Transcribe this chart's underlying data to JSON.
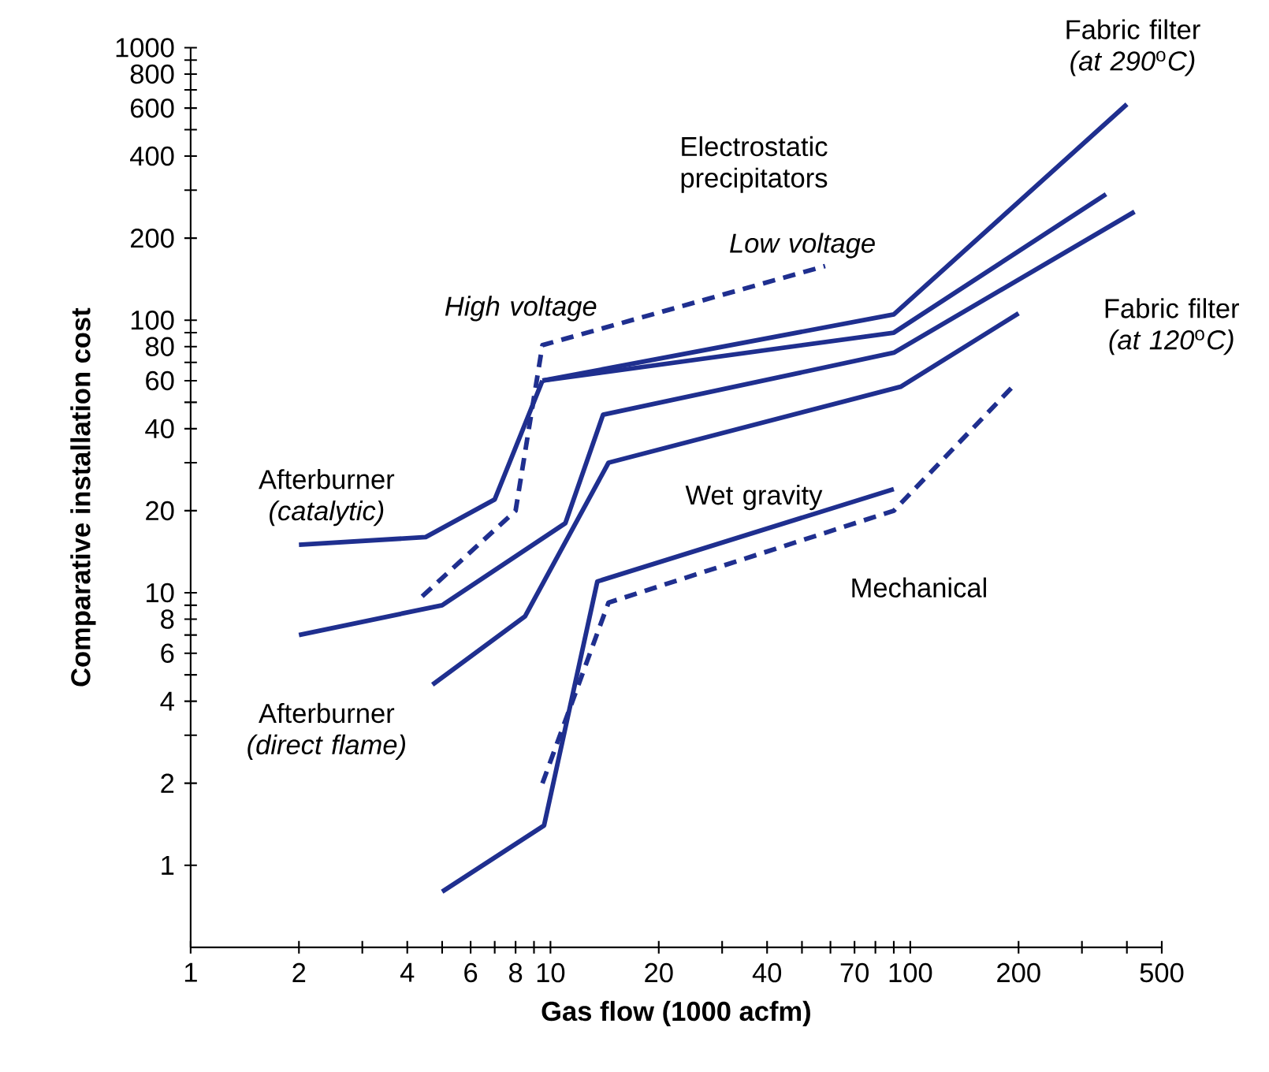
{
  "chart_data": {
    "type": "line",
    "xlabel": "Gas flow (1000 acfm)",
    "ylabel": "Comparative installation cost",
    "log": "xy",
    "marker": "none",
    "xlim": [
      1,
      500
    ],
    "ylim": [
      0.5,
      1000
    ],
    "xticks": [
      1,
      2,
      {
        "value": 3,
        "label": null
      },
      4,
      {
        "value": 5,
        "label": null
      },
      6,
      {
        "value": 7,
        "label": null
      },
      8,
      {
        "value": 9,
        "label": null
      },
      10,
      20,
      {
        "value": 30,
        "label": null
      },
      40,
      {
        "value": 50,
        "label": null
      },
      {
        "value": 60,
        "label": null
      },
      70,
      {
        "value": 80,
        "label": null
      },
      {
        "value": 90,
        "label": null
      },
      100,
      200,
      {
        "value": 300,
        "label": null
      },
      {
        "value": 400,
        "label": null
      },
      500
    ],
    "yticks": [
      1,
      2,
      {
        "value": 3,
        "label": null
      },
      4,
      {
        "value": 5,
        "label": null
      },
      6,
      {
        "value": 7,
        "label": null
      },
      8,
      {
        "value": 9,
        "label": null
      },
      10,
      20,
      {
        "value": 30,
        "label": null
      },
      40,
      {
        "value": 50,
        "label": null
      },
      60,
      {
        "value": 70,
        "label": null
      },
      80,
      {
        "value": 90,
        "label": null
      },
      100,
      200,
      {
        "value": 300,
        "label": null
      },
      400,
      {
        "value": 500,
        "label": null
      },
      600,
      {
        "value": 700,
        "label": null
      },
      800,
      {
        "value": 900,
        "label": null
      },
      1000
    ],
    "series": [
      {
        "color": "#1f2f8f",
        "line_style": "solid",
        "x": [
          2,
          4.5,
          7,
          9.5
        ],
        "values": [
          15,
          16,
          22,
          60
        ]
      },
      {
        "color": "#1f2f8f",
        "line_style": "solid",
        "x": [
          9.5,
          90,
          400
        ],
        "values": [
          60,
          105,
          620
        ]
      },
      {
        "color": "#1f2f8f",
        "line_style": "solid",
        "x": [
          9.5,
          90,
          350
        ],
        "values": [
          60,
          90,
          290
        ]
      },
      {
        "color": "#1f2f8f",
        "line_style": "solid",
        "x": [
          2,
          5,
          11,
          14,
          90,
          420
        ],
        "values": [
          7,
          9,
          18,
          45,
          76,
          250
        ]
      },
      {
        "color": "#1f2f8f",
        "line_style": "solid",
        "x": [
          4.7,
          8.5,
          14.5,
          94,
          200
        ],
        "values": [
          4.6,
          8.2,
          30,
          57,
          106
        ]
      },
      {
        "color": "#1f2f8f",
        "line_style": "solid",
        "x": [
          5,
          9.6,
          13.5,
          90
        ],
        "values": [
          0.8,
          1.4,
          11,
          24
        ]
      },
      {
        "color": "#1f2f8f",
        "line_style": "dashed",
        "x": [
          9.5,
          14.5,
          90,
          195
        ],
        "values": [
          2,
          9.2,
          20,
          58
        ]
      },
      {
        "color": "#1f2f8f",
        "line_style": "dashed",
        "x": [
          4.4,
          8,
          9.5,
          58
        ],
        "values": [
          9.7,
          20,
          81,
          158
        ]
      }
    ],
    "annotations": [
      "Fabric filter *(at 290*$^{o}$*C)*",
      "Electrostatic precipitators",
      "*Low voltage*",
      "*High voltage*",
      "Fabric filter *(at 120*$^{o}$*C)*",
      "Afterburner *(catalytic)*",
      "Afterburner *(direct flame)*",
      "Wet gravity",
      "Mechanical"
    ]
  }
}
